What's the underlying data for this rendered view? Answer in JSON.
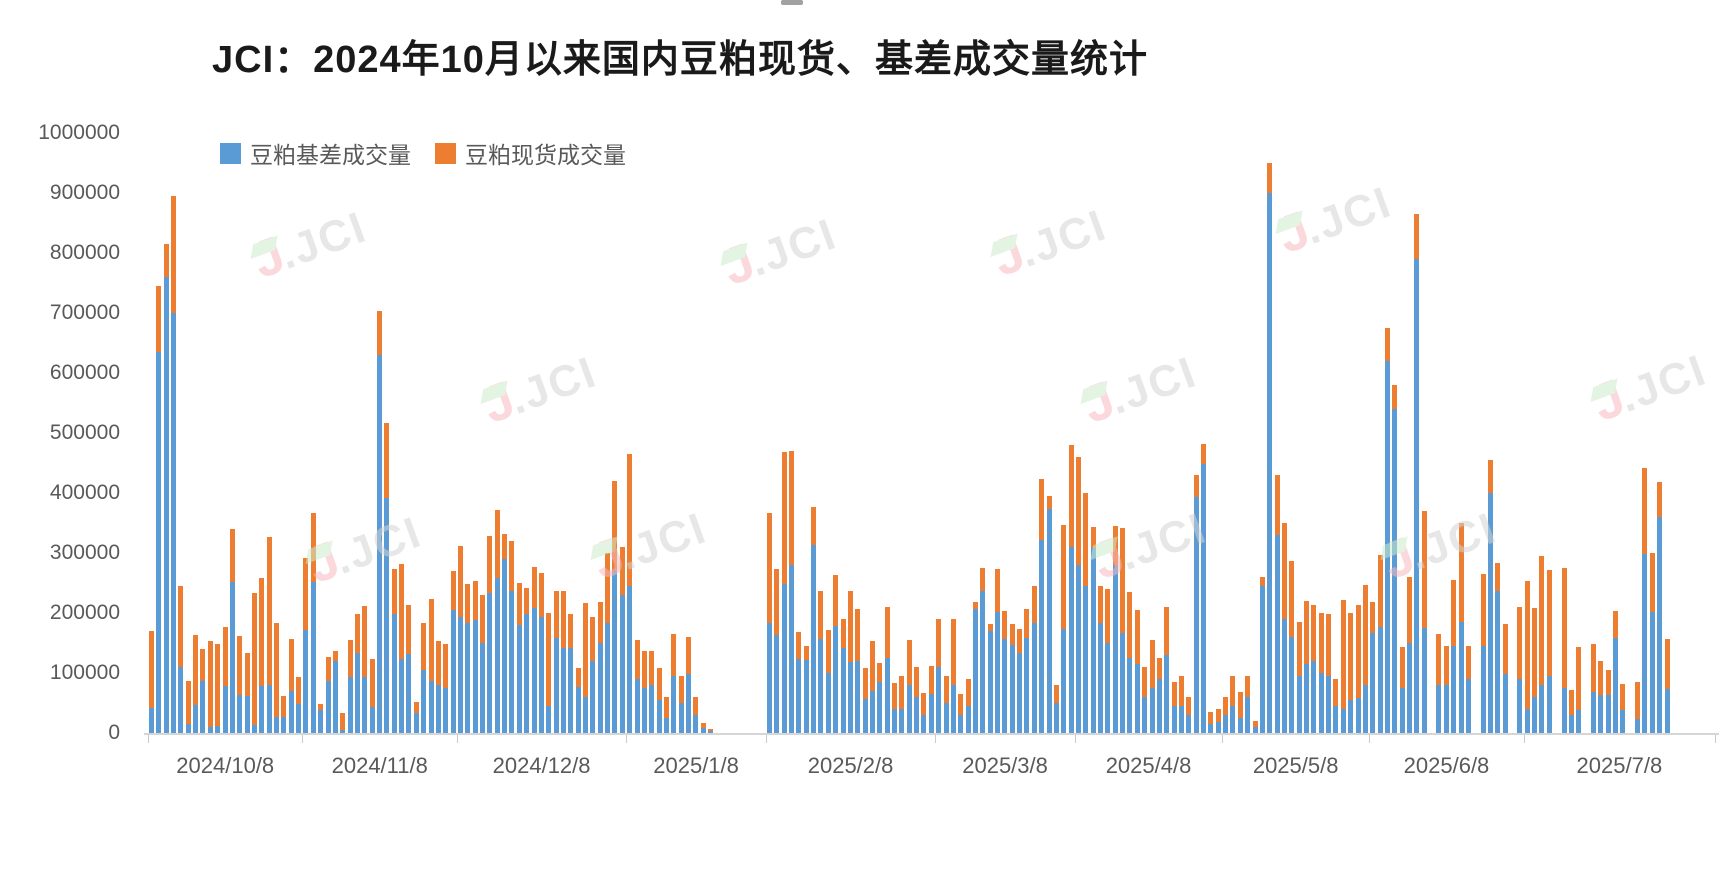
{
  "title": "JCI：2024年10月以来国内豆粕现货、基差成交量统计",
  "legend": [
    {
      "label": "豆粕基差成交量",
      "color": "#5B9BD5"
    },
    {
      "label": "豆粕现货成交量",
      "color": "#ED7D31"
    }
  ],
  "watermark": {
    "accent": "J",
    "text": ".JCI"
  },
  "colors": {
    "basis_blue": "#5B9BD5",
    "spot_orange": "#ED7D31",
    "axis_text": "#595959",
    "axis_line": "#d6d6d6"
  },
  "chart_data": {
    "type": "bar",
    "stacked": true,
    "title": "JCI：2024年10月以来国内豆粕现货、基差成交量统计",
    "legend_position": "top-left-inside",
    "grid": false,
    "ylim": [
      0,
      1000000
    ],
    "y_ticks": [
      0,
      100000,
      200000,
      300000,
      400000,
      500000,
      600000,
      700000,
      800000,
      900000,
      1000000
    ],
    "x_tick_labels": [
      "2024/10/8",
      "2024/11/8",
      "2024/12/8",
      "2025/1/8",
      "2025/2/8",
      "2025/3/8",
      "2025/4/8",
      "2025/5/8",
      "2025/6/8",
      "2025/7/8"
    ],
    "month_start_indices": [
      0,
      21,
      42,
      65,
      84,
      107,
      126,
      146,
      166,
      187,
      213
    ],
    "series": [
      {
        "name": "豆粕基差成交量",
        "color": "#5B9BD5"
      },
      {
        "name": "豆粕现货成交量",
        "color": "#ED7D31"
      }
    ],
    "bars_format": "[basis_volume, spot_volume] stacked; null = no trading day",
    "bars": [
      [
        42000,
        128000
      ],
      [
        635000,
        110000
      ],
      [
        760000,
        55000
      ],
      [
        700000,
        195000
      ],
      [
        110000,
        135000
      ],
      [
        15000,
        72000
      ],
      [
        46000,
        118000
      ],
      [
        87000,
        53000
      ],
      [
        10000,
        144000
      ],
      [
        12000,
        136000
      ],
      [
        79000,
        97000
      ],
      [
        252000,
        88000
      ],
      [
        63000,
        99000
      ],
      [
        62000,
        72000
      ],
      [
        13000,
        221000
      ],
      [
        78000,
        181000
      ],
      [
        80000,
        246000
      ],
      [
        27000,
        157000
      ],
      [
        26000,
        35000
      ],
      [
        70000,
        86000
      ],
      [
        49000,
        44000
      ],
      [
        172000,
        119000
      ],
      [
        252000,
        115000
      ],
      [
        39000,
        10000
      ],
      [
        87000,
        40000
      ],
      [
        120000,
        16000
      ],
      [
        5000,
        28000
      ],
      [
        93000,
        62000
      ],
      [
        134000,
        65000
      ],
      [
        94000,
        118000
      ],
      [
        44000,
        80000
      ],
      [
        630000,
        73000
      ],
      [
        391000,
        126000
      ],
      [
        199000,
        75000
      ],
      [
        123000,
        158000
      ],
      [
        131000,
        83000
      ],
      [
        33000,
        19000
      ],
      [
        105000,
        78000
      ],
      [
        87000,
        136000
      ],
      [
        80000,
        74000
      ],
      [
        75000,
        74000
      ],
      [
        205000,
        65000
      ],
      [
        194000,
        118000
      ],
      [
        184000,
        65000
      ],
      [
        188000,
        66000
      ],
      [
        150000,
        80000
      ],
      [
        233000,
        95000
      ],
      [
        258000,
        114000
      ],
      [
        290000,
        42000
      ],
      [
        236000,
        84000
      ],
      [
        180000,
        70000
      ],
      [
        199000,
        42000
      ],
      [
        208000,
        69000
      ],
      [
        194000,
        73000
      ],
      [
        45000,
        155000
      ],
      [
        158000,
        78000
      ],
      [
        141000,
        95000
      ],
      [
        141000,
        58000
      ],
      [
        77000,
        31000
      ],
      [
        60000,
        156000
      ],
      [
        120000,
        74000
      ],
      [
        150000,
        69000
      ],
      [
        184000,
        116000
      ],
      [
        270000,
        150000
      ],
      [
        230000,
        80000
      ],
      [
        245000,
        220000
      ],
      [
        90000,
        65000
      ],
      [
        75000,
        62000
      ],
      [
        80000,
        57000
      ],
      [
        55000,
        53000
      ],
      [
        25000,
        35000
      ],
      [
        95000,
        70000
      ],
      [
        50000,
        45000
      ],
      [
        99000,
        61000
      ],
      [
        30000,
        30000
      ],
      [
        8000,
        8000
      ],
      [
        3000,
        3000
      ],
      null,
      null,
      null,
      null,
      null,
      null,
      null,
      [
        184000,
        183000
      ],
      [
        163000,
        111000
      ],
      [
        249000,
        220000
      ],
      [
        280000,
        190000
      ],
      [
        124000,
        45000
      ],
      [
        122000,
        23000
      ],
      [
        314000,
        63000
      ],
      [
        156000,
        81000
      ],
      [
        100000,
        72000
      ],
      [
        178000,
        86000
      ],
      [
        141000,
        49000
      ],
      [
        118000,
        118000
      ],
      [
        120000,
        87000
      ],
      [
        56000,
        53000
      ],
      [
        70000,
        84000
      ],
      [
        85000,
        32000
      ],
      [
        125000,
        85000
      ],
      [
        40000,
        43000
      ],
      [
        40000,
        55000
      ],
      [
        80000,
        75000
      ],
      [
        60000,
        50000
      ],
      [
        30000,
        36000
      ],
      [
        65000,
        47000
      ],
      [
        110000,
        80000
      ],
      [
        50000,
        45000
      ],
      [
        80000,
        110000
      ],
      [
        30000,
        35000
      ],
      [
        45000,
        45000
      ],
      [
        206000,
        13000
      ],
      [
        236000,
        39000
      ],
      [
        170000,
        11000
      ],
      [
        201000,
        73000
      ],
      [
        156000,
        47000
      ],
      [
        147000,
        34000
      ],
      [
        133000,
        40000
      ],
      [
        158000,
        48000
      ],
      [
        184000,
        61000
      ],
      [
        322000,
        101000
      ],
      [
        373000,
        22000
      ],
      [
        50000,
        30000
      ],
      [
        173000,
        174000
      ],
      [
        310000,
        170000
      ],
      [
        280000,
        180000
      ],
      [
        245000,
        155000
      ],
      [
        308000,
        36000
      ],
      [
        184000,
        61000
      ],
      [
        150000,
        90000
      ],
      [
        280000,
        65000
      ],
      [
        167000,
        175000
      ],
      [
        125000,
        110000
      ],
      [
        115000,
        90000
      ],
      [
        60000,
        50000
      ],
      [
        75000,
        80000
      ],
      [
        90000,
        35000
      ],
      [
        130000,
        80000
      ],
      [
        45000,
        40000
      ],
      [
        45000,
        50000
      ],
      [
        30000,
        30000
      ],
      [
        394000,
        36000
      ],
      [
        449000,
        33000
      ],
      [
        15000,
        20000
      ],
      [
        18000,
        22000
      ],
      [
        30000,
        30000
      ],
      [
        45000,
        50000
      ],
      [
        25000,
        43000
      ],
      [
        60000,
        35000
      ],
      [
        10000,
        10000
      ],
      [
        245000,
        15000
      ],
      [
        900000,
        50000
      ],
      [
        330000,
        100000
      ],
      [
        190000,
        160000
      ],
      [
        160000,
        127000
      ],
      [
        95000,
        90000
      ],
      [
        115000,
        105000
      ],
      [
        120000,
        93000
      ],
      [
        100000,
        100000
      ],
      [
        95000,
        103000
      ],
      [
        45000,
        45000
      ],
      [
        40000,
        182000
      ],
      [
        55000,
        145000
      ],
      [
        58000,
        155000
      ],
      [
        80000,
        167000
      ],
      [
        166000,
        53000
      ],
      [
        176000,
        121000
      ],
      [
        620000,
        55000
      ],
      [
        540000,
        40000
      ],
      [
        75000,
        68000
      ],
      [
        150000,
        110000
      ],
      [
        790000,
        75000
      ],
      [
        175000,
        195000
      ],
      null,
      [
        80000,
        85000
      ],
      [
        80000,
        65000
      ],
      [
        145000,
        110000
      ],
      [
        185000,
        165000
      ],
      [
        90000,
        55000
      ],
      null,
      [
        145000,
        120000
      ],
      [
        400000,
        55000
      ],
      [
        236000,
        47000
      ],
      [
        99000,
        83000
      ],
      null,
      [
        90000,
        120000
      ],
      [
        40000,
        213000
      ],
      [
        60000,
        148000
      ],
      [
        80000,
        215000
      ],
      [
        95000,
        177000
      ],
      null,
      [
        75000,
        200000
      ],
      [
        30000,
        42000
      ],
      [
        38000,
        106000
      ],
      null,
      [
        69000,
        80000
      ],
      [
        63000,
        57000
      ],
      [
        63000,
        42000
      ],
      [
        158000,
        45000
      ],
      [
        39000,
        42000
      ],
      null,
      [
        24000,
        61000
      ],
      [
        299000,
        142000
      ],
      [
        202000,
        98000
      ],
      [
        360000,
        59000
      ],
      [
        74000,
        82000
      ],
      null,
      null,
      null,
      null,
      null,
      null
    ]
  }
}
